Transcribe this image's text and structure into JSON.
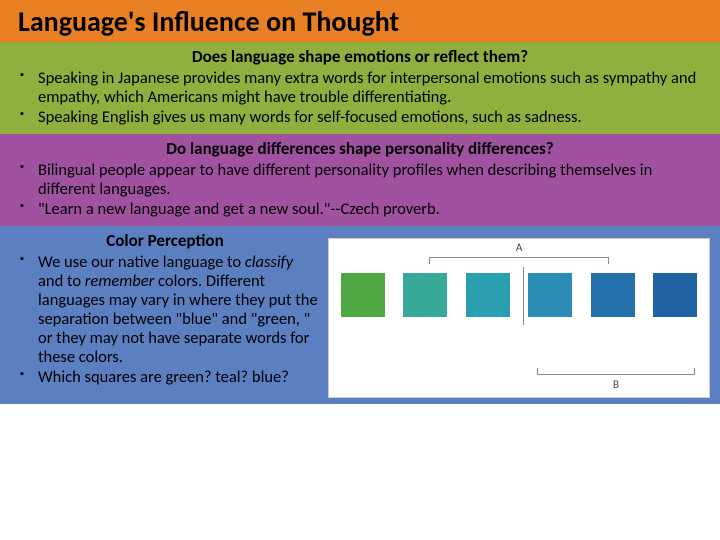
{
  "title": "Language's Influence on Thought",
  "section1": {
    "bg": "#8fb03e",
    "heading": "Does language shape emotions or reflect them?",
    "bullets": [
      "Speaking in Japanese provides many extra words for interpersonal emotions such as sympathy and empathy, which Americans might have trouble differentiating.",
      "Speaking English gives us many words for self-focused emotions, such as sadness."
    ]
  },
  "section2": {
    "bg": "#a0519f",
    "heading": "Do language differences shape personality differences?",
    "bullets": [
      "Bilingual people appear to have different personality profiles when describing themselves in different languages.",
      "\"Learn a new language and get a new soul.\"--Czech proverb."
    ]
  },
  "section3": {
    "bg": "#5c7fc1",
    "heading": "Color Perception",
    "bullets_html": [
      "We use our native language to <span class=\"italic\">classify</span> and to <span class=\"italic\">remember</span> colors. Different languages may vary in where they put the separation between \"blue\" and \"green, \" or they may not have separate words for these colors.",
      "Which squares are green? teal? blue?"
    ]
  },
  "chart": {
    "label_a": "A",
    "label_b": "B",
    "square_colors": [
      "#4fa843",
      "#37a999",
      "#2b9fb0",
      "#2b8db5",
      "#2470ab",
      "#1f63a3"
    ],
    "square_size": 44,
    "gap": 6,
    "bg": "#ffffff",
    "border": "#cccccc",
    "bracket_color": "#888888"
  }
}
